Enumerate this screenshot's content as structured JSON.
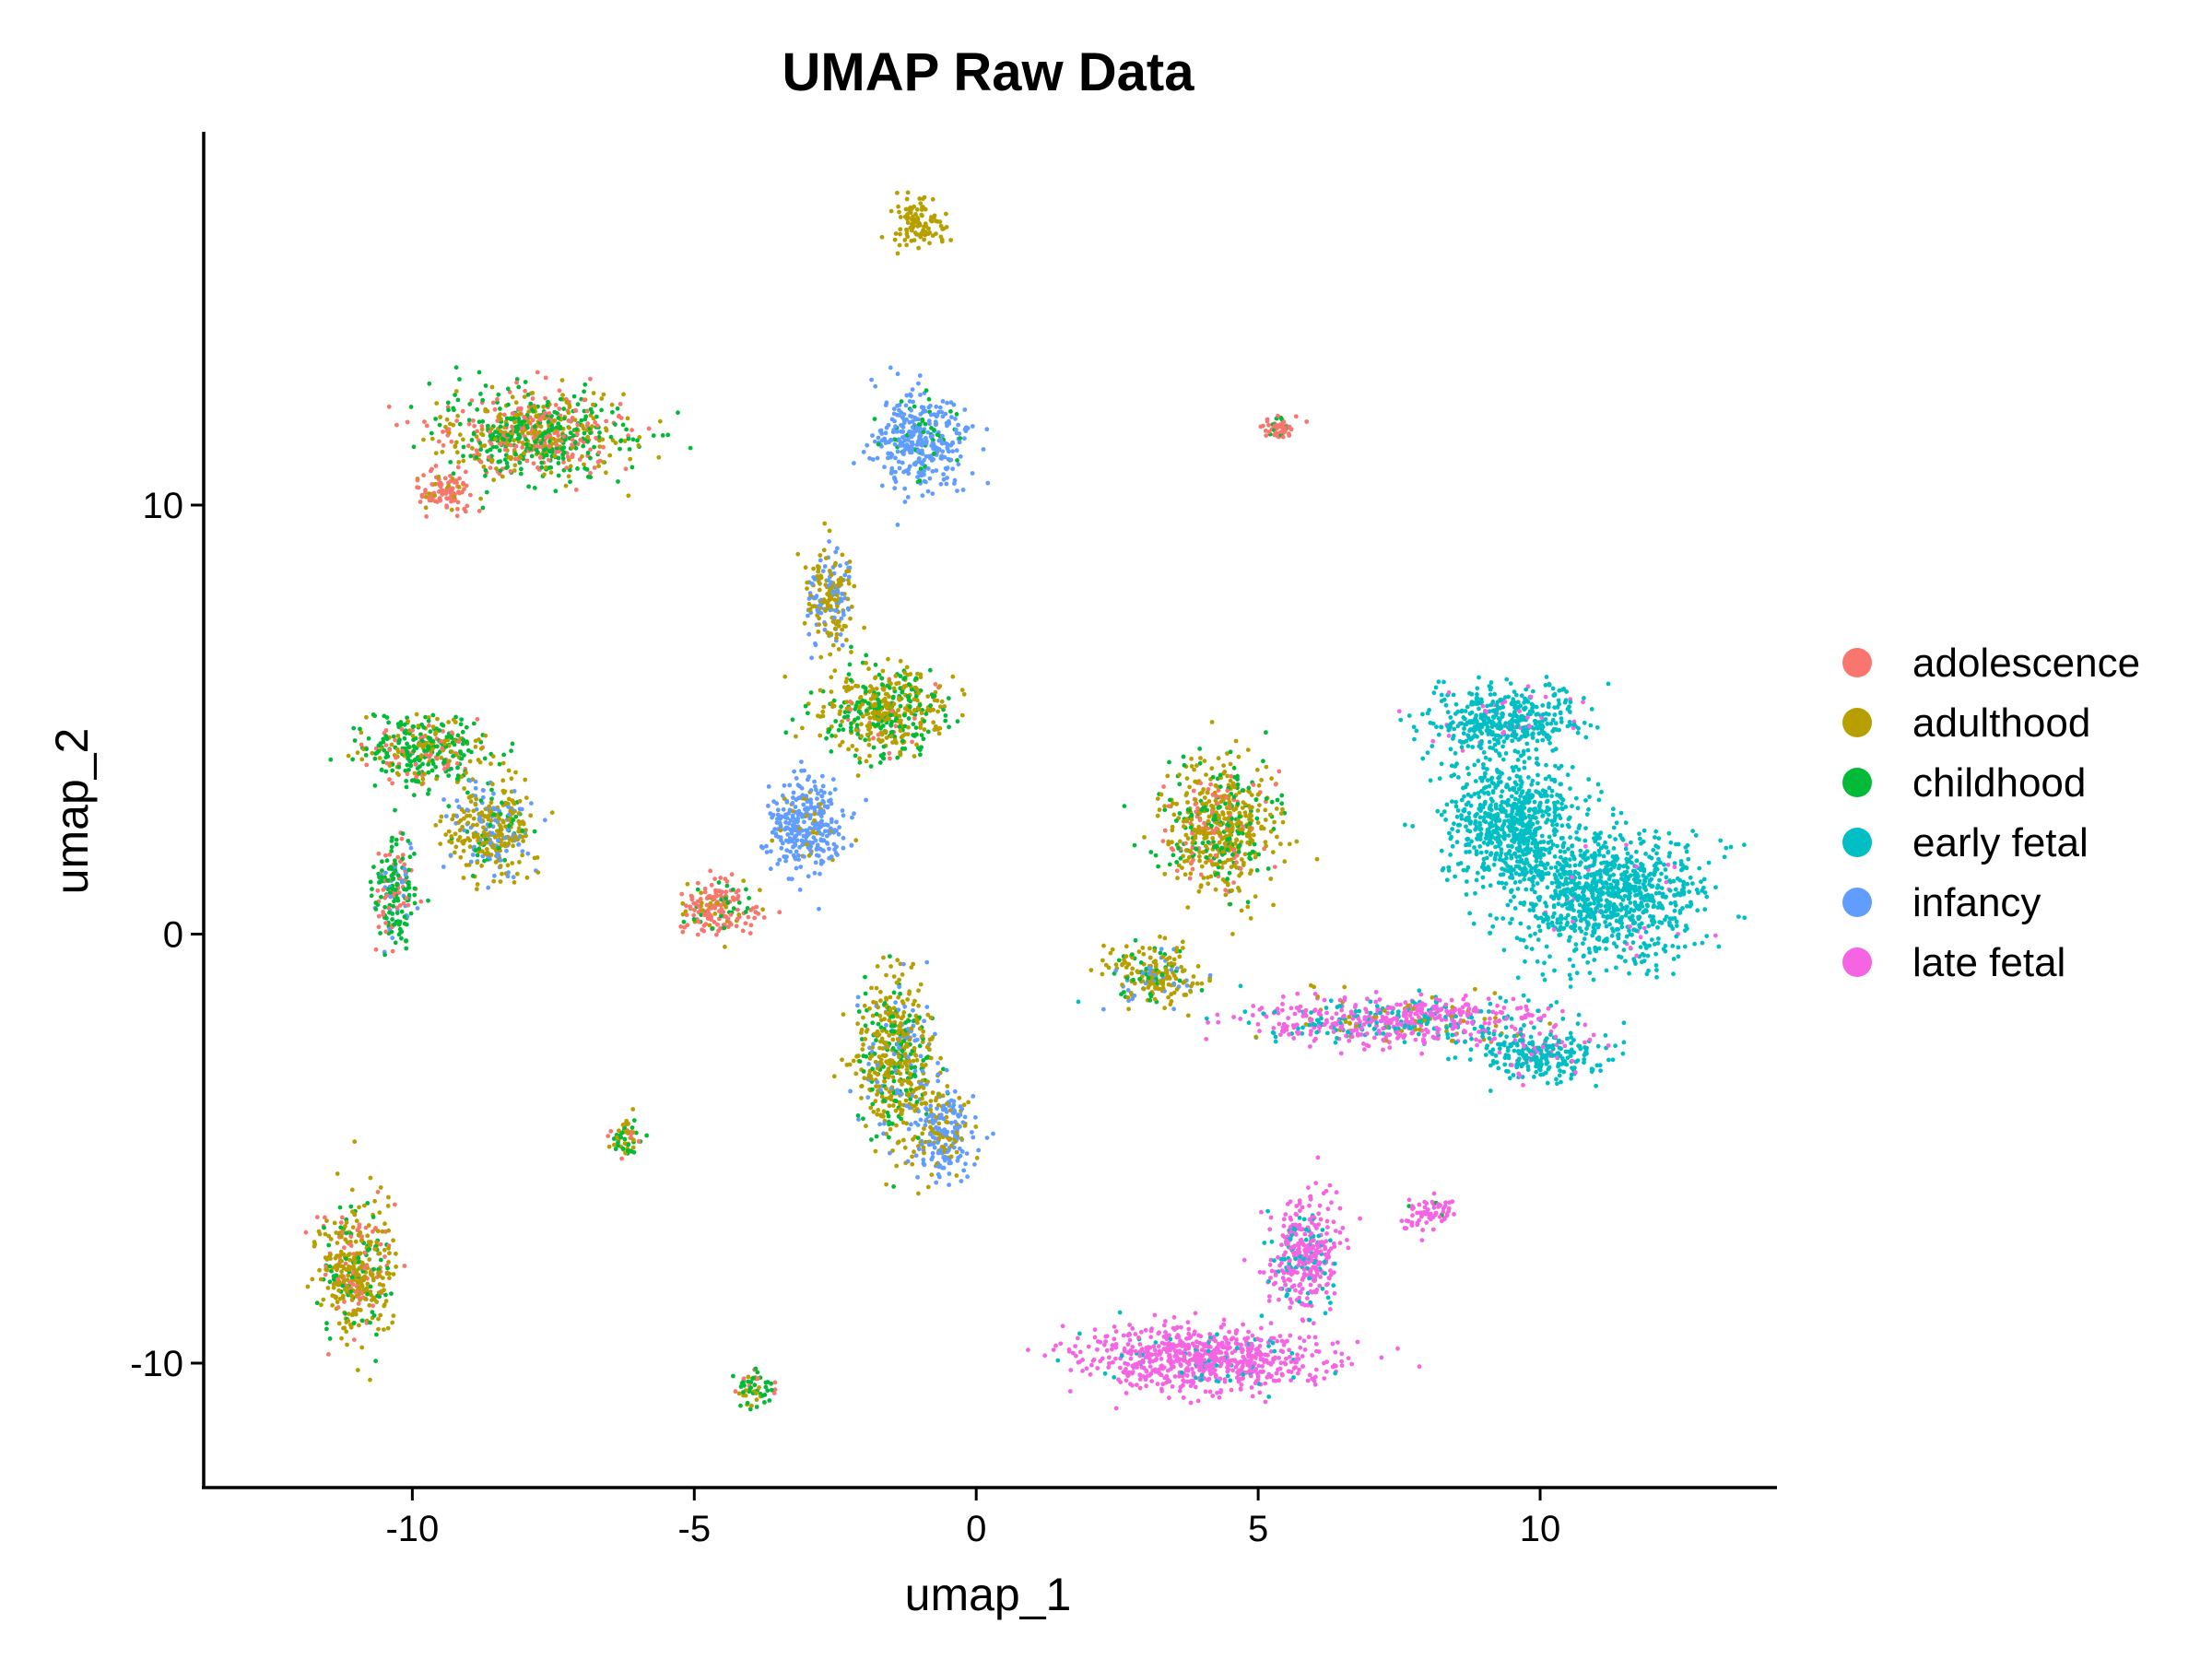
{
  "chart_data": {
    "type": "scatter",
    "title": "UMAP Raw Data",
    "xlabel": "umap_1",
    "ylabel": "umap_2",
    "xlim": [
      -13.7,
      14.2
    ],
    "ylim": [
      -12.9,
      18.7
    ],
    "x_ticks": [
      -10,
      -5,
      0,
      5,
      10
    ],
    "y_ticks": [
      -10,
      0,
      10
    ],
    "x_tick_labels": [
      "-10",
      "-5",
      "0",
      "5",
      "10"
    ],
    "y_tick_labels": [
      "-10",
      "0",
      "10"
    ],
    "grid": false,
    "legend_position": "right",
    "series": [
      {
        "name": "adolescence",
        "color": "#F8766D"
      },
      {
        "name": "adulthood",
        "color": "#B79F00"
      },
      {
        "name": "childhood",
        "color": "#00BA38"
      },
      {
        "name": "early fetal",
        "color": "#00BFC4"
      },
      {
        "name": "infancy",
        "color": "#619CFF"
      },
      {
        "name": "late fetal",
        "color": "#F564E3"
      }
    ],
    "clusters": [
      {
        "center": [
          -7.8,
          11.6
        ],
        "spread": [
          1.6,
          0.9
        ],
        "mix": {
          "adolescence": 0.25,
          "adulthood": 0.35,
          "childhood": 0.4
        }
      },
      {
        "center": [
          -9.4,
          10.3
        ],
        "spread": [
          0.45,
          0.45
        ],
        "mix": {
          "adolescence": 0.85,
          "adulthood": 0.15
        }
      },
      {
        "center": [
          -1.0,
          11.5
        ],
        "spread": [
          0.7,
          1.0
        ],
        "mix": {
          "infancy": 0.85,
          "childhood": 0.15
        }
      },
      {
        "center": [
          -1.0,
          16.6
        ],
        "spread": [
          0.4,
          0.5
        ],
        "mix": {
          "adulthood": 1.0
        }
      },
      {
        "center": [
          -2.6,
          7.9
        ],
        "spread": [
          0.4,
          1.0
        ],
        "mix": {
          "adulthood": 0.65,
          "infancy": 0.35
        }
      },
      {
        "center": [
          -1.6,
          5.2
        ],
        "spread": [
          1.0,
          0.9
        ],
        "mix": {
          "adulthood": 0.55,
          "childhood": 0.4,
          "adolescence": 0.05
        }
      },
      {
        "center": [
          -3.0,
          2.5
        ],
        "spread": [
          0.6,
          1.0
        ],
        "mix": {
          "infancy": 0.9,
          "adulthood": 0.1
        }
      },
      {
        "center": [
          -4.6,
          0.6
        ],
        "spread": [
          0.6,
          0.6
        ],
        "mix": {
          "adolescence": 0.75,
          "adulthood": 0.15,
          "childhood": 0.1
        }
      },
      {
        "center": [
          -9.8,
          4.3
        ],
        "spread": [
          1.0,
          0.7
        ],
        "mix": {
          "childhood": 0.55,
          "adulthood": 0.3,
          "adolescence": 0.15
        }
      },
      {
        "center": [
          -8.6,
          2.4
        ],
        "spread": [
          0.7,
          1.0
        ],
        "mix": {
          "adulthood": 0.6,
          "infancy": 0.25,
          "childhood": 0.15
        }
      },
      {
        "center": [
          -10.3,
          1.0
        ],
        "spread": [
          0.35,
          1.1
        ],
        "mix": {
          "childhood": 0.6,
          "adolescence": 0.25,
          "infancy": 0.15
        }
      },
      {
        "center": [
          -11.0,
          -7.8
        ],
        "spread": [
          0.6,
          1.4
        ],
        "mix": {
          "adulthood": 0.65,
          "childhood": 0.2,
          "adolescence": 0.15
        }
      },
      {
        "center": [
          -1.4,
          -2.8
        ],
        "spread": [
          0.6,
          1.7
        ],
        "mix": {
          "adulthood": 0.6,
          "childhood": 0.25,
          "infancy": 0.15
        }
      },
      {
        "center": [
          -0.6,
          -4.6
        ],
        "spread": [
          0.5,
          0.9
        ],
        "mix": {
          "infancy": 0.7,
          "adulthood": 0.3
        }
      },
      {
        "center": [
          -6.2,
          -4.7
        ],
        "spread": [
          0.3,
          0.4
        ],
        "mix": {
          "childhood": 0.5,
          "adulthood": 0.3,
          "adolescence": 0.2
        }
      },
      {
        "center": [
          -3.9,
          -10.6
        ],
        "spread": [
          0.3,
          0.4
        ],
        "mix": {
          "childhood": 0.5,
          "adulthood": 0.35,
          "adolescence": 0.15
        }
      },
      {
        "center": [
          4.3,
          2.5
        ],
        "spread": [
          0.9,
          1.3
        ],
        "mix": {
          "adulthood": 0.6,
          "childhood": 0.25,
          "adolescence": 0.15
        }
      },
      {
        "center": [
          3.2,
          -1.0
        ],
        "spread": [
          0.7,
          0.6
        ],
        "mix": {
          "adulthood": 0.7,
          "childhood": 0.15,
          "infancy": 0.15
        }
      },
      {
        "center": [
          7.5,
          -2.0
        ],
        "spread": [
          2.4,
          0.5
        ],
        "mix": {
          "late fetal": 0.6,
          "early fetal": 0.3,
          "adulthood": 0.1
        }
      },
      {
        "center": [
          10.0,
          -2.8
        ],
        "spread": [
          1.0,
          0.5
        ],
        "mix": {
          "early fetal": 0.85,
          "late fetal": 0.15
        }
      },
      {
        "center": [
          11.2,
          0.9
        ],
        "spread": [
          1.4,
          1.3
        ],
        "mix": {
          "early fetal": 0.97,
          "late fetal": 0.03
        }
      },
      {
        "center": [
          9.5,
          2.6
        ],
        "spread": [
          1.0,
          1.4
        ],
        "mix": {
          "early fetal": 1.0
        }
      },
      {
        "center": [
          9.3,
          5.0
        ],
        "spread": [
          1.2,
          0.7
        ],
        "mix": {
          "early fetal": 0.9,
          "late fetal": 0.1
        }
      },
      {
        "center": [
          4.0,
          -9.9
        ],
        "spread": [
          2.0,
          0.7
        ],
        "mix": {
          "late fetal": 0.93,
          "early fetal": 0.07
        }
      },
      {
        "center": [
          5.8,
          -7.5
        ],
        "spread": [
          0.6,
          1.2
        ],
        "mix": {
          "late fetal": 0.8,
          "early fetal": 0.2
        }
      },
      {
        "center": [
          8.0,
          -6.5
        ],
        "spread": [
          0.4,
          0.35
        ],
        "mix": {
          "late fetal": 0.95,
          "childhood": 0.05
        }
      },
      {
        "center": [
          5.4,
          11.8
        ],
        "spread": [
          0.25,
          0.2
        ],
        "mix": {
          "adolescence": 0.8,
          "childhood": 0.2
        }
      }
    ]
  }
}
